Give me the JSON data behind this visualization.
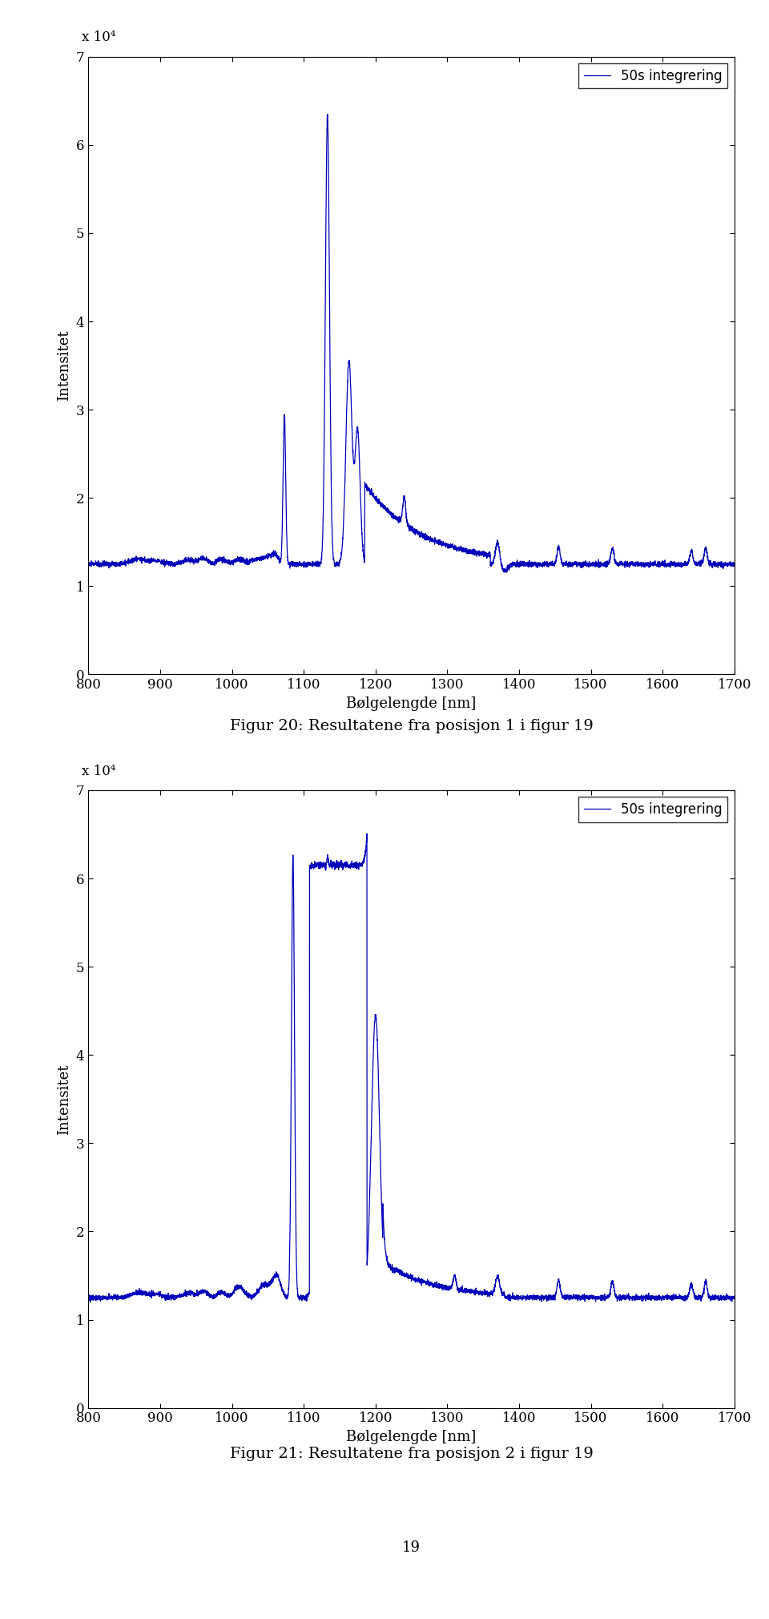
{
  "xlim": [
    800,
    1700
  ],
  "ylim": [
    0,
    70000
  ],
  "yticks": [
    0,
    10000,
    20000,
    30000,
    40000,
    50000,
    60000,
    70000
  ],
  "ytick_labels": [
    "0",
    "1",
    "2",
    "3",
    "4",
    "5",
    "6",
    "7"
  ],
  "xticks": [
    800,
    900,
    1000,
    1100,
    1200,
    1300,
    1400,
    1500,
    1600,
    1700
  ],
  "xlabel": "Bølgelengde [nm]",
  "ylabel": "Intensitet",
  "legend_label": "50s integrering",
  "line_color": "#0000bb",
  "line_width": 0.9,
  "caption1": "Figur 20: Resultatene fra posisjon 1 i figur 19",
  "caption2": "Figur 21: Resultatene fra posisjon 2 i figur 19",
  "page_number": "19",
  "background_color": "#ffffff",
  "exponent_label": "x 10⁴"
}
